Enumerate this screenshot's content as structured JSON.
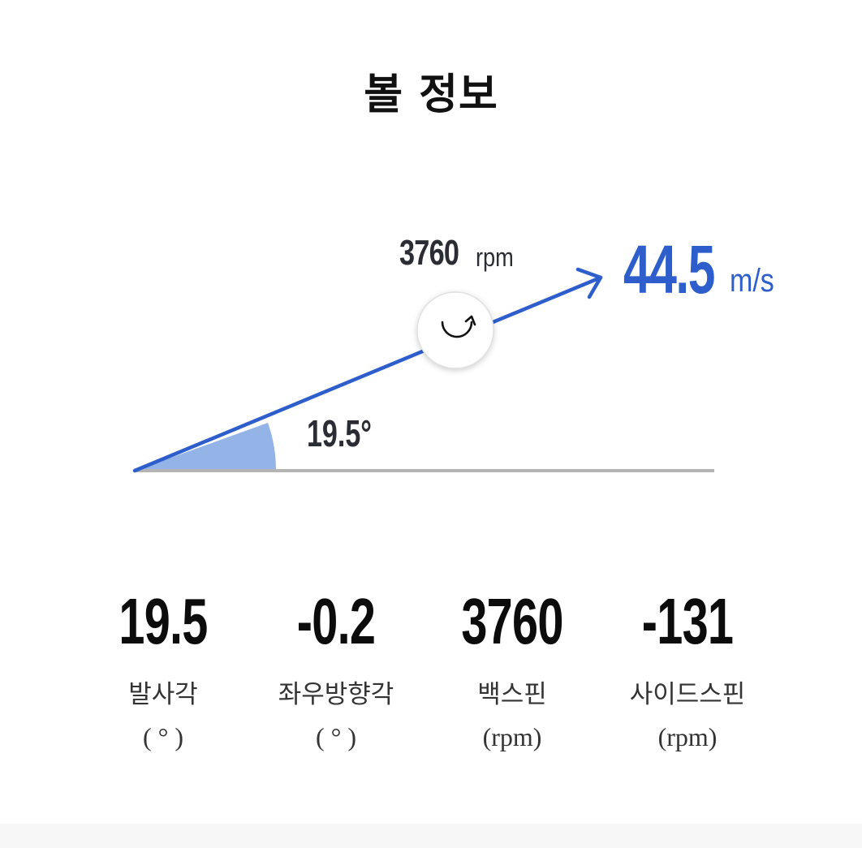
{
  "page": {
    "title": "볼 정보"
  },
  "diagram": {
    "spin_value": "3760",
    "spin_unit": "rpm",
    "speed_value": "44.5",
    "speed_unit": "m/s",
    "angle_label": "19.5°",
    "launch_angle_deg": 19.5,
    "spin_icon": "rotate-clockwise-icon",
    "colors": {
      "accent": "#2d5ecc",
      "angle_fill": "#94b4e8",
      "baseline": "#b4b4b4",
      "text_dark": "#2a2d33"
    }
  },
  "stats": [
    {
      "value": "19.5",
      "label": "발사각",
      "unit": "( ° )"
    },
    {
      "value": "-0.2",
      "label": "좌우방향각",
      "unit": "( ° )"
    },
    {
      "value": "3760",
      "label": "백스핀",
      "unit": "(rpm)"
    },
    {
      "value": "-131",
      "label": "사이드스핀",
      "unit": "(rpm)"
    }
  ]
}
